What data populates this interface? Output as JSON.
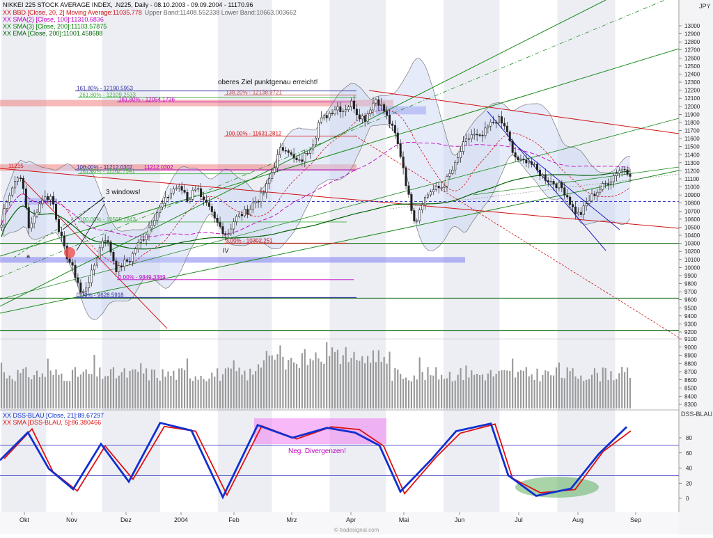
{
  "chart_data": [
    {
      "type": "candlestick",
      "title": "NIKKEI 225 STOCK AVERAGE INDEX, .N225, Daily - 08.10.2003 - 09.09.2004 - 11170.96",
      "currency": "JPY",
      "legend": [
        {
          "text": "XX BBD [Close, 20, 2] Moving Average:11035.778",
          "extra": "Upper Band:11408.552338 Lower Band:10663.003662",
          "color": "#d01010"
        },
        {
          "text": "XX SMA(2) [Close, 100]:11310.6836",
          "color": "#c000c0"
        },
        {
          "text": "XX SMA(3) [Close, 200]:11103.57875",
          "color": "#008000"
        },
        {
          "text": "XX EMA [Close, 200]:11001.458688",
          "color": "#006000"
        }
      ],
      "yticks": [
        9200,
        9300,
        9400,
        9500,
        9600,
        9700,
        9800,
        9900,
        10000,
        10100,
        10200,
        10300,
        10400,
        10500,
        10600,
        10700,
        10800,
        10900,
        11000,
        11100,
        11200,
        11300,
        11400,
        11500,
        11600,
        11700,
        11800,
        11900,
        12000,
        12100,
        12200,
        12300,
        12400,
        12500,
        12600,
        12700,
        12800,
        12900,
        13000
      ],
      "ylim": [
        9150,
        13100
      ],
      "months": [
        "Okt",
        "Nov",
        "Dez",
        "2004",
        "Feb",
        "Mrz",
        "Apr",
        "Mai",
        "Jun",
        "Jul",
        "Aug",
        "Sep"
      ],
      "close_path": [
        [
          "2003-10-08",
          10530
        ],
        [
          "2003-10-10",
          10800
        ],
        [
          "2003-10-14",
          11000
        ],
        [
          "2003-10-17",
          11160
        ],
        [
          "2003-10-20",
          10950
        ],
        [
          "2003-10-23",
          10450
        ],
        [
          "2003-10-27",
          10720
        ],
        [
          "2003-10-30",
          10860
        ],
        [
          "2003-11-04",
          10880
        ],
        [
          "2003-11-07",
          10550
        ],
        [
          "2003-11-11",
          10200
        ],
        [
          "2003-11-14",
          10050
        ],
        [
          "2003-11-18",
          9820
        ],
        [
          "2003-11-20",
          9640
        ],
        [
          "2003-11-25",
          9900
        ],
        [
          "2003-11-28",
          10120
        ],
        [
          "2003-12-02",
          10400
        ],
        [
          "2003-12-05",
          10250
        ],
        [
          "2003-12-09",
          9950
        ],
        [
          "2003-12-12",
          10050
        ],
        [
          "2003-12-16",
          10100
        ],
        [
          "2003-12-19",
          10250
        ],
        [
          "2003-12-24",
          10400
        ],
        [
          "2003-12-30",
          10670
        ],
        [
          "2004-01-06",
          10900
        ],
        [
          "2004-01-09",
          11000
        ],
        [
          "2004-01-14",
          10950
        ],
        [
          "2004-01-16",
          10820
        ],
        [
          "2004-01-21",
          11050
        ],
        [
          "2004-01-23",
          10850
        ],
        [
          "2004-01-28",
          10700
        ],
        [
          "2004-01-30",
          10600
        ],
        [
          "2004-02-03",
          10480
        ],
        [
          "2004-02-06",
          10400
        ],
        [
          "2004-02-10",
          10600
        ],
        [
          "2004-02-13",
          10650
        ],
        [
          "2004-02-18",
          10720
        ],
        [
          "2004-02-20",
          10800
        ],
        [
          "2004-02-25",
          10900
        ],
        [
          "2004-02-27",
          11000
        ],
        [
          "2004-03-03",
          11300
        ],
        [
          "2004-03-05",
          11450
        ],
        [
          "2004-03-09",
          11500
        ],
        [
          "2004-03-12",
          11350
        ],
        [
          "2004-03-16",
          11300
        ],
        [
          "2004-03-19",
          11400
        ],
        [
          "2004-03-24",
          11600
        ],
        [
          "2004-03-26",
          11800
        ],
        [
          "2004-03-31",
          11900
        ],
        [
          "2004-04-05",
          12000
        ],
        [
          "2004-04-08",
          11950
        ],
        [
          "2004-04-13",
          12050
        ],
        [
          "2004-04-16",
          11900
        ],
        [
          "2004-04-20",
          11850
        ],
        [
          "2004-04-23",
          12000
        ],
        [
          "2004-04-26",
          12100
        ],
        [
          "2004-04-30",
          11950
        ],
        [
          "2004-05-06",
          11650
        ],
        [
          "2004-05-10",
          11300
        ],
        [
          "2004-05-13",
          10900
        ],
        [
          "2004-05-17",
          10550
        ],
        [
          "2004-05-20",
          10800
        ],
        [
          "2004-05-25",
          10950
        ],
        [
          "2004-05-31",
          11000
        ],
        [
          "2004-06-03",
          11100
        ],
        [
          "2004-06-08",
          11300
        ],
        [
          "2004-06-11",
          11500
        ],
        [
          "2004-06-16",
          11650
        ],
        [
          "2004-06-21",
          11600
        ],
        [
          "2004-06-25",
          11750
        ],
        [
          "2004-06-30",
          11850
        ],
        [
          "2004-07-05",
          11700
        ],
        [
          "2004-07-08",
          11400
        ],
        [
          "2004-07-13",
          11300
        ],
        [
          "2004-07-16",
          11350
        ],
        [
          "2004-07-21",
          11200
        ],
        [
          "2004-07-26",
          11100
        ],
        [
          "2004-07-30",
          11050
        ],
        [
          "2004-08-03",
          11000
        ],
        [
          "2004-08-06",
          10900
        ],
        [
          "2004-08-10",
          10700
        ],
        [
          "2004-08-13",
          10650
        ],
        [
          "2004-08-17",
          10800
        ],
        [
          "2004-08-20",
          10900
        ],
        [
          "2004-08-25",
          11000
        ],
        [
          "2004-08-30",
          11100
        ],
        [
          "2004-09-02",
          11200
        ],
        [
          "2004-09-06",
          11230
        ],
        [
          "2004-09-09",
          11170
        ]
      ],
      "candles_approx": [
        {
          "date": "2003-10-08",
          "o": 10480,
          "h": 10620,
          "l": 10400,
          "c": 10530
        },
        {
          "date": "2003-10-17",
          "o": 11000,
          "h": 11215,
          "l": 10950,
          "c": 11160
        },
        {
          "date": "2003-11-20",
          "o": 9700,
          "h": 9750,
          "l": 9620,
          "c": 9640
        },
        {
          "date": "2004-02-06",
          "o": 10450,
          "h": 10520,
          "l": 10302,
          "c": 10400
        },
        {
          "date": "2004-04-26",
          "o": 12050,
          "h": 12195,
          "l": 11980,
          "c": 12100
        },
        {
          "date": "2004-05-17",
          "o": 10650,
          "h": 10700,
          "l": 10500,
          "c": 10550
        },
        {
          "date": "2004-06-30",
          "o": 11800,
          "h": 11920,
          "l": 11750,
          "c": 11850
        },
        {
          "date": "2004-08-13",
          "o": 10700,
          "h": 10760,
          "l": 10580,
          "c": 10650
        },
        {
          "date": "2004-09-09",
          "o": 11250,
          "h": 11300,
          "l": 11120,
          "c": 11170
        }
      ],
      "fibonacci": [
        {
          "label": "161.80% - 12190.5953",
          "value": 12190.5953,
          "color": "#3030a0"
        },
        {
          "label": "138.20% - 12138.9721",
          "value": 12138.9721,
          "color": "#c05050"
        },
        {
          "label": "261.80% - 12109.2533",
          "value": 12109.2533,
          "color": "#40b040"
        },
        {
          "label": "161.80% - 12054.1736",
          "value": 12054.1736,
          "color": "#c000c0"
        },
        {
          "label": "100.00% - 11631.2812",
          "value": 11631.2812,
          "color": "#d01010"
        },
        {
          "label": "100.00% - 11212.0302",
          "value": 11212.0302,
          "color": "#3030a0"
        },
        {
          "label": "11212.0302",
          "value": 11212.0302,
          "color": "#c000c0"
        },
        {
          "label": "161.80% - 11162.7541",
          "value": 11162.7541,
          "color": "#40b040"
        },
        {
          "label": "100.00% - 10565.1843",
          "value": 10565.1843,
          "color": "#40b040"
        },
        {
          "label": "0.00% - 10302.251",
          "value": 10302.251,
          "color": "#d01010"
        },
        {
          "label": "0.00% - 9849.3389",
          "value": 9849.3389,
          "color": "#c000c0"
        },
        {
          "label": "0.00% - 9628.5918",
          "value": 9628.5918,
          "color": "#3030a0"
        }
      ],
      "horizontal_lines": [
        {
          "value": 10300,
          "color": "#006000"
        },
        {
          "value": 9620,
          "color": "#006000"
        },
        {
          "value": 9220,
          "color": "#006000"
        },
        {
          "value": 10820,
          "color": "#2020c0",
          "style": "dashed"
        }
      ],
      "zones": [
        {
          "from": 12000,
          "to": 12080,
          "color": "#f08080"
        },
        {
          "from": 11200,
          "to": 11280,
          "color": "#f08080"
        },
        {
          "from": 11900,
          "to": 12000,
          "color": "#8080f0"
        },
        {
          "from": 10780,
          "to": 10860,
          "color": "#8080f0"
        },
        {
          "from": 10060,
          "to": 10130,
          "color": "#8080f0"
        }
      ],
      "annotations": [
        {
          "text": "oberes Ziel punktgenau erreicht!"
        },
        {
          "text": "3 windows!"
        },
        {
          "text": "11215"
        },
        {
          "text": "a"
        },
        {
          "text": "IV"
        }
      ]
    },
    {
      "type": "bar",
      "title": "Volume",
      "yticks": [
        8300,
        8400,
        8500,
        8600,
        8700,
        8800,
        8900,
        9000,
        9100
      ],
      "ylim": [
        8250,
        9130
      ]
    },
    {
      "type": "line",
      "title": "DSS-BLAU",
      "series": [
        {
          "name": "XX DSS-BLAU [Close, 21]:89.67297",
          "color": "#1030d0"
        },
        {
          "name": "XX SMA [DSS-BLAU, 5]:86.380466",
          "color": "#e01010"
        }
      ],
      "yticks": [
        0,
        20,
        40,
        60,
        80
      ],
      "levels": [
        70,
        30
      ],
      "ylim": [
        -8,
        100
      ],
      "annotations": [
        {
          "text": "Neg. Divergenzen!"
        }
      ],
      "panel_label": "DSS-BLAU"
    }
  ],
  "footer": "© tradesignal.com"
}
